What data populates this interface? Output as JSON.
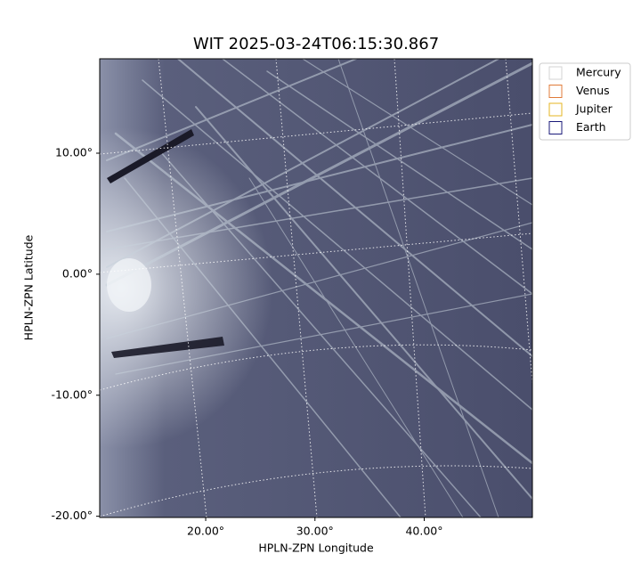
{
  "chart_data": {
    "type": "image",
    "title": "WIT 2025-03-24T06:15:30.867",
    "x_label": "HPLN-ZPN Longitude",
    "y_label": "HPLN-ZPN Latitude",
    "xlim": [
      10.3,
      49.9
    ],
    "ylim": [
      -20.1,
      17.8
    ],
    "xticks": [
      {
        "value": 20,
        "label": "20.00°"
      },
      {
        "value": 30,
        "label": "30.00°"
      },
      {
        "value": 40,
        "label": "40.00°"
      }
    ],
    "yticks": [
      {
        "value": -20,
        "label": "-20.00°"
      },
      {
        "value": -10,
        "label": "-10.00°"
      },
      {
        "value": 0,
        "label": "0.00°"
      },
      {
        "value": 10,
        "label": "10.00°"
      }
    ],
    "legend": [
      {
        "name": "Mercury",
        "color": "#d3d3d3"
      },
      {
        "name": "Venus",
        "color": "#e07b39"
      },
      {
        "name": "Jupiter",
        "color": "#e6b422"
      },
      {
        "name": "Earth",
        "color": "#1a1a7a"
      }
    ]
  }
}
